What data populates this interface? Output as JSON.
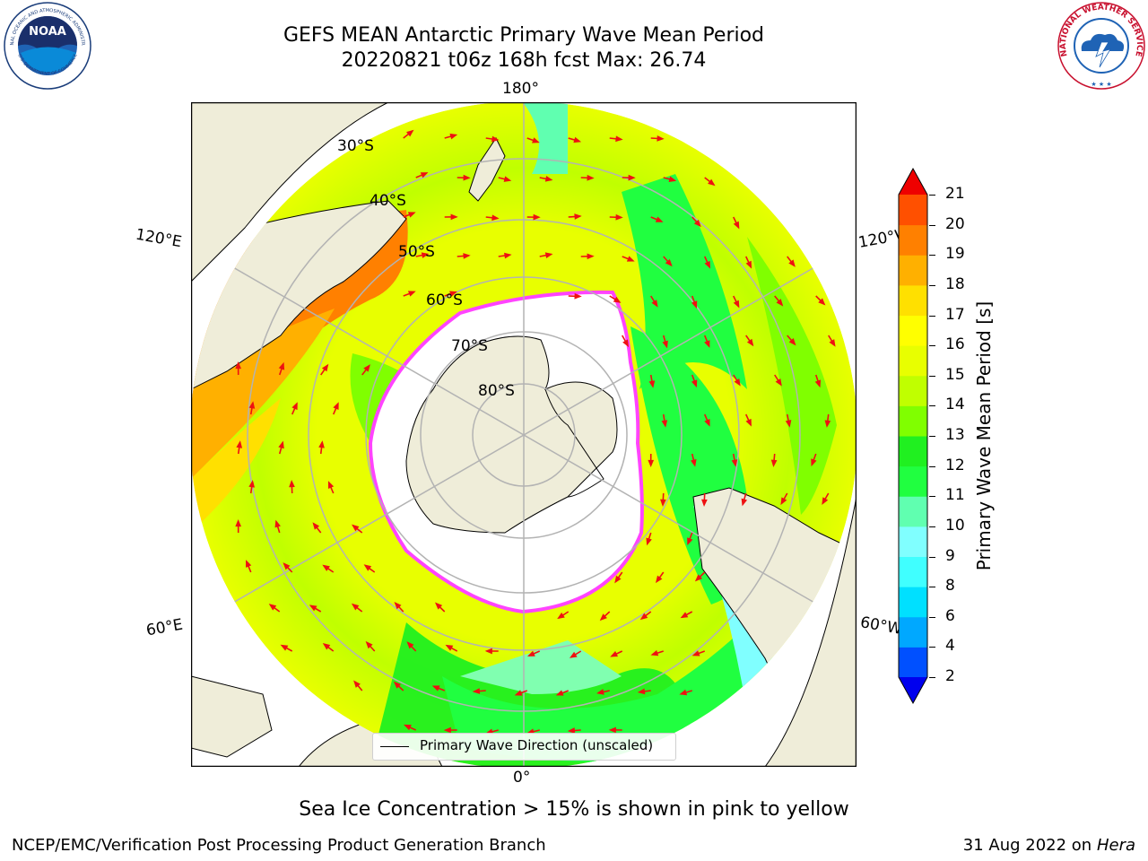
{
  "title": {
    "line1": "GEFS MEAN Antarctic Primary Wave Mean Period",
    "line2": "20220821 t06z 168h fcst   Max: 26.74"
  },
  "logos": {
    "noaa": "NOAA",
    "noaa_ring": "NATIONAL OCEANIC AND ATMOSPHERIC ADMINISTRATION",
    "noaa_ring_bottom": "U.S. DEPARTMENT OF COMMERCE",
    "nws_ring": "NATIONAL WEATHER SERVICE"
  },
  "map": {
    "projection": "south-polar-stereographic",
    "lon_labels": {
      "top": "180°",
      "bottom": "0°",
      "upper_left": "120°E",
      "upper_right": "120°W",
      "lower_left": "60°E",
      "lower_right": "60°W"
    },
    "lat_labels": [
      "30°S",
      "40°S",
      "50°S",
      "60°S",
      "70°S",
      "80°S"
    ],
    "colors": {
      "land": "#efedd9",
      "ice_edge": "#ff44ff",
      "arrow": "#ee1111",
      "grid": "#b3b3b3"
    }
  },
  "colorbar": {
    "label": "Primary Wave Mean Period [s]",
    "ticks": [
      "2",
      "4",
      "6",
      "8",
      "9",
      "10",
      "11",
      "12",
      "13",
      "14",
      "15",
      "16",
      "17",
      "18",
      "19",
      "20",
      "21"
    ],
    "colors": [
      "#0050ff",
      "#00a8ff",
      "#00e0ff",
      "#40ffff",
      "#80ffff",
      "#60ffb0",
      "#20ff40",
      "#20f020",
      "#80ff00",
      "#c0ff00",
      "#e8ff00",
      "#ffff00",
      "#ffe000",
      "#ffb000",
      "#ff8000",
      "#ff5000",
      "#ff2000"
    ],
    "under_color": "#0000ee",
    "over_color": "#ee0000"
  },
  "legend": {
    "label": "Primary Wave Direction (unscaled)"
  },
  "footnote": "Sea Ice Concentration > 15% is shown in pink to yellow",
  "credit": "NCEP/EMC/Verification Post Processing Product Generation Branch",
  "date": {
    "text": "31 Aug 2022 on",
    "host": "Hera"
  }
}
